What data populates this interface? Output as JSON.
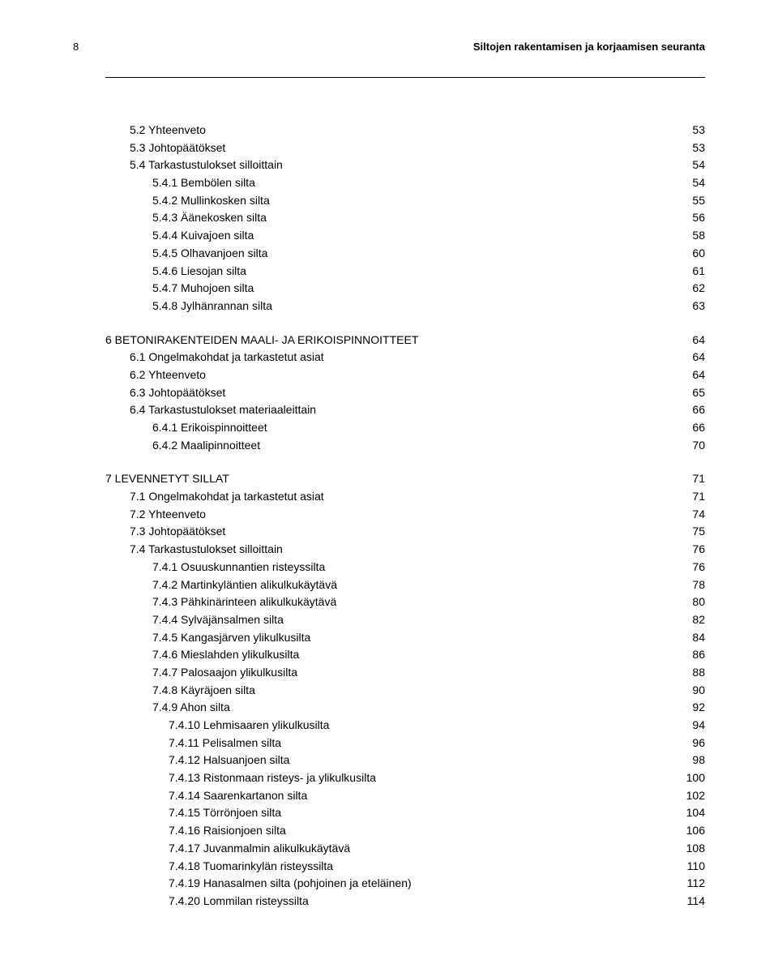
{
  "page_number": "8",
  "header": "Siltojen rakentamisen ja korjaamisen seuranta",
  "toc": [
    {
      "level": "l1",
      "label": "5.2 Yhteenveto",
      "page": "53"
    },
    {
      "level": "l1",
      "label": "5.3 Johtopäätökset",
      "page": "53"
    },
    {
      "level": "l1",
      "label": "5.4 Tarkastustulokset silloittain",
      "page": "54"
    },
    {
      "level": "l2",
      "label": "5.4.1 Bembölen silta",
      "page": "54"
    },
    {
      "level": "l2",
      "label": "5.4.2 Mullinkosken silta",
      "page": "55"
    },
    {
      "level": "l2",
      "label": "5.4.3 Äänekosken silta",
      "page": "56"
    },
    {
      "level": "l2",
      "label": "5.4.4 Kuivajoen silta",
      "page": "58"
    },
    {
      "level": "l2",
      "label": "5.4.5 Olhavanjoen silta",
      "page": "60"
    },
    {
      "level": "l2",
      "label": "5.4.6 Liesojan silta",
      "page": "61"
    },
    {
      "level": "l2",
      "label": "5.4.7 Muhojoen silta",
      "page": "62"
    },
    {
      "level": "l2",
      "label": "5.4.8 Jylhänrannan silta",
      "page": "63"
    },
    {
      "level": "section-head",
      "gap": true,
      "label": "6 BETONIRAKENTEIDEN MAALI- JA ERIKOISPINNOITTEET",
      "page": "64"
    },
    {
      "level": "l1",
      "label": "6.1 Ongelmakohdat ja tarkastetut asiat",
      "page": "64"
    },
    {
      "level": "l1",
      "label": "6.2 Yhteenveto",
      "page": "64"
    },
    {
      "level": "l1",
      "label": "6.3 Johtopäätökset",
      "page": "65"
    },
    {
      "level": "l1",
      "label": "6.4 Tarkastustulokset materiaaleittain",
      "page": "66"
    },
    {
      "level": "l2",
      "label": "6.4.1 Erikoispinnoitteet",
      "page": "66"
    },
    {
      "level": "l2",
      "label": "6.4.2 Maalipinnoitteet",
      "page": "70"
    },
    {
      "level": "section-head",
      "gap": true,
      "label": "7 LEVENNETYT SILLAT",
      "page": "71"
    },
    {
      "level": "l1",
      "label": "7.1 Ongelmakohdat ja tarkastetut asiat",
      "page": "71"
    },
    {
      "level": "l1",
      "label": "7.2 Yhteenveto",
      "page": "74"
    },
    {
      "level": "l1",
      "label": "7.3 Johtopäätökset",
      "page": "75"
    },
    {
      "level": "l1",
      "label": "7.4 Tarkastustulokset silloittain",
      "page": "76"
    },
    {
      "level": "l2",
      "label": "7.4.1 Osuuskunnantien risteyssilta",
      "page": "76"
    },
    {
      "level": "l2",
      "label": "7.4.2 Martinkyläntien alikulkukäytävä",
      "page": "78"
    },
    {
      "level": "l2",
      "label": "7.4.3 Pähkinärinteen alikulkukäytävä",
      "page": "80"
    },
    {
      "level": "l2",
      "label": "7.4.4 Sylväjänsalmen silta",
      "page": "82"
    },
    {
      "level": "l2",
      "label": "7.4.5 Kangasjärven ylikulkusilta",
      "page": "84"
    },
    {
      "level": "l2",
      "label": "7.4.6 Mieslahden ylikulkusilta",
      "page": "86"
    },
    {
      "level": "l2",
      "label": "7.4.7 Palosaajon ylikulkusilta",
      "page": "88"
    },
    {
      "level": "l2",
      "label": "7.4.8 Käyräjoen silta",
      "page": "90"
    },
    {
      "level": "l2",
      "label": "7.4.9 Ahon silta",
      "page": "92"
    },
    {
      "level": "l3",
      "label": "7.4.10 Lehmisaaren ylikulkusilta",
      "page": "94"
    },
    {
      "level": "l3",
      "label": "7.4.11 Pelisalmen silta",
      "page": "96"
    },
    {
      "level": "l3",
      "label": "7.4.12 Halsuanjoen silta",
      "page": "98"
    },
    {
      "level": "l3",
      "label": "7.4.13 Ristonmaan risteys- ja ylikulkusilta",
      "page": "100"
    },
    {
      "level": "l3",
      "label": "7.4.14 Saarenkartanon silta",
      "page": "102"
    },
    {
      "level": "l3",
      "label": "7.4.15 Törrönjoen silta",
      "page": "104"
    },
    {
      "level": "l3",
      "label": "7.4.16 Raisionjoen silta",
      "page": "106"
    },
    {
      "level": "l3",
      "label": "7.4.17 Juvanmalmin alikulkukäytävä",
      "page": "108"
    },
    {
      "level": "l3",
      "label": "7.4.18 Tuomarinkylän risteyssilta",
      "page": "110"
    },
    {
      "level": "l3",
      "label": "7.4.19 Hanasalmen silta (pohjoinen ja eteläinen)",
      "page": "112"
    },
    {
      "level": "l3",
      "label": "7.4.20 Lommilan risteyssilta",
      "page": "114"
    }
  ]
}
